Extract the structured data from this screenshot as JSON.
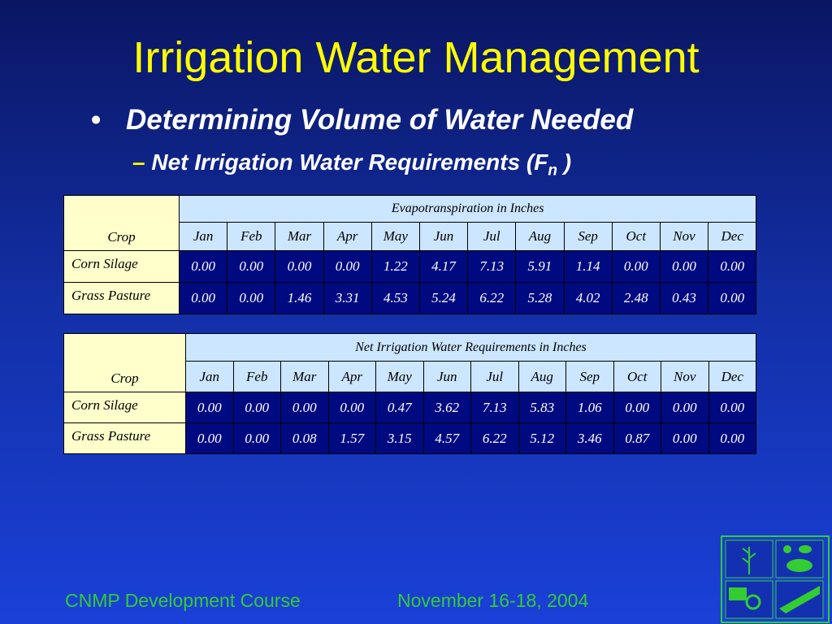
{
  "title": "Irrigation Water Management",
  "bullet": "Determining Volume of Water Needed",
  "sub_bullet": {
    "text": "Net Irrigation Water Requirements (F",
    "subscript": "n",
    "end": " )"
  },
  "tables": [
    {
      "crop_header": "Crop",
      "group_header": "Evapotranspiration in Inches",
      "months": [
        "Jan",
        "Feb",
        "Mar",
        "Apr",
        "May",
        "Jun",
        "Jul",
        "Aug",
        "Sep",
        "Oct",
        "Nov",
        "Dec"
      ],
      "rows": [
        {
          "name": "Corn Silage",
          "values": [
            "0.00",
            "0.00",
            "0.00",
            "0.00",
            "1.22",
            "4.17",
            "7.13",
            "5.91",
            "1.14",
            "0.00",
            "0.00",
            "0.00"
          ]
        },
        {
          "name": "Grass Pasture",
          "values": [
            "0.00",
            "0.00",
            "1.46",
            "3.31",
            "4.53",
            "5.24",
            "6.22",
            "5.28",
            "4.02",
            "2.48",
            "0.43",
            "0.00"
          ]
        }
      ]
    },
    {
      "crop_header": "Crop",
      "group_header": "Net Irrigation Water Requirements in Inches",
      "months": [
        "Jan",
        "Feb",
        "Mar",
        "Apr",
        "May",
        "Jun",
        "Jul",
        "Aug",
        "Sep",
        "Oct",
        "Nov",
        "Dec"
      ],
      "rows": [
        {
          "name": "Corn Silage",
          "values": [
            "0.00",
            "0.00",
            "0.00",
            "0.00",
            "0.47",
            "3.62",
            "7.13",
            "5.83",
            "1.06",
            "0.00",
            "0.00",
            "0.00"
          ]
        },
        {
          "name": "Grass Pasture",
          "values": [
            "0.00",
            "0.00",
            "0.08",
            "1.57",
            "3.15",
            "4.57",
            "6.22",
            "5.12",
            "3.46",
            "0.87",
            "0.00",
            "0.00"
          ]
        }
      ]
    }
  ],
  "footer": {
    "left": "CNMP Development Course",
    "right": "November 16-18, 2004"
  }
}
